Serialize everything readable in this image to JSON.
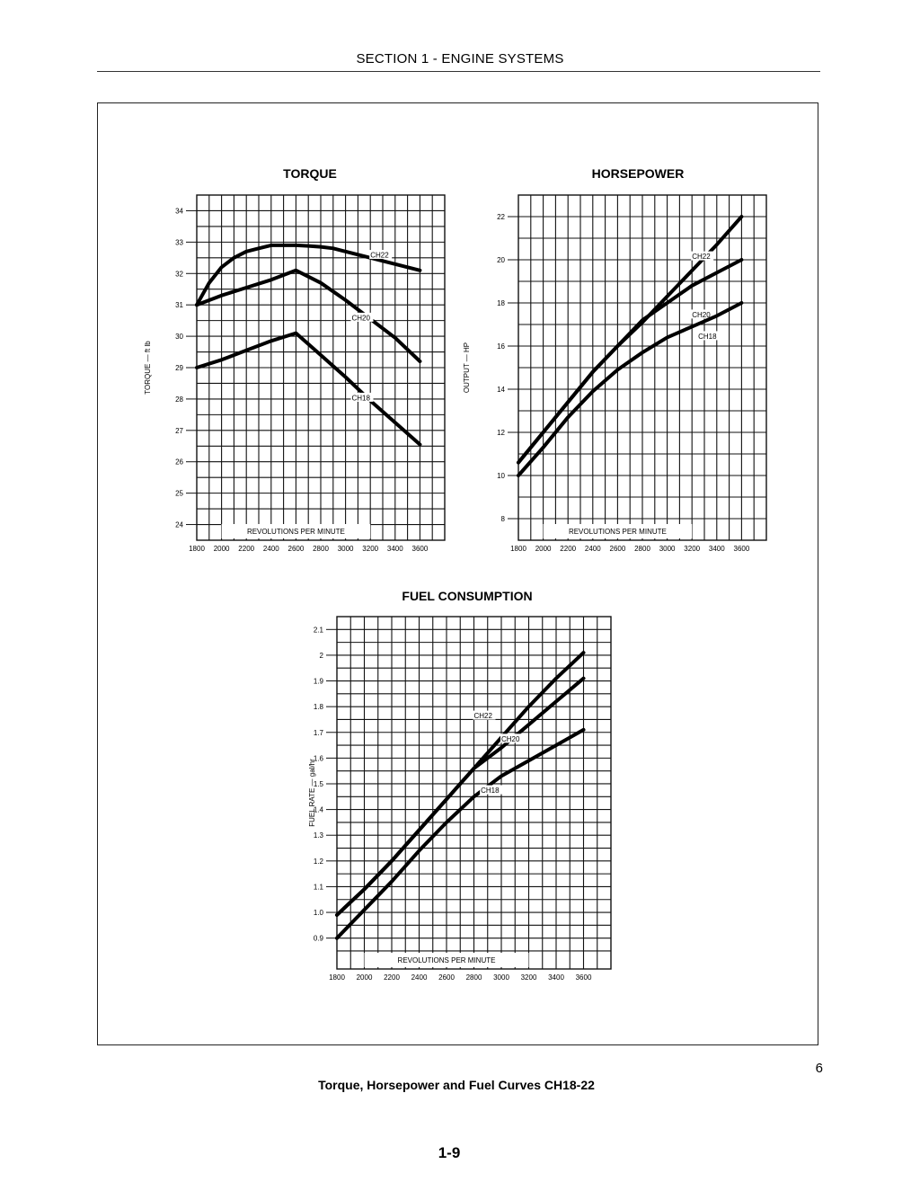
{
  "header": {
    "title": "SECTION 1 - ENGINE SYSTEMS"
  },
  "figure": {
    "number": "6",
    "caption": "Torque, Horsepower and Fuel Curves CH18-22"
  },
  "page": {
    "number": "1-9"
  },
  "chart_data": [
    {
      "id": "torque",
      "type": "line",
      "title": "TORQUE",
      "xlabel": "REVOLUTIONS PER MINUTE",
      "ylabel": "TORQUE — ft lb",
      "xlim": [
        1800,
        3800
      ],
      "ylim": [
        23.5,
        34.5
      ],
      "x_ticks": [
        "1800",
        "2000",
        "2200",
        "2400",
        "2600",
        "2800",
        "3000",
        "3200",
        "3400",
        "3600"
      ],
      "y_ticks": [
        "24",
        "25",
        "26",
        "27",
        "28",
        "29",
        "30",
        "31",
        "32",
        "33",
        "34"
      ],
      "grid": true,
      "series": [
        {
          "name": "CH22",
          "x": [
            1800,
            1900,
            2000,
            2100,
            2200,
            2300,
            2400,
            2500,
            2600,
            2700,
            2800,
            2900,
            3000,
            3100,
            3200,
            3300,
            3400,
            3500,
            3600
          ],
          "y": [
            31.0,
            31.7,
            32.2,
            32.5,
            32.7,
            32.8,
            32.9,
            32.9,
            32.9,
            32.88,
            32.85,
            32.8,
            32.7,
            32.6,
            32.5,
            32.4,
            32.3,
            32.2,
            32.1
          ]
        },
        {
          "name": "CH20",
          "x": [
            1800,
            2000,
            2200,
            2400,
            2600,
            2800,
            3000,
            3200,
            3400,
            3600
          ],
          "y": [
            31.0,
            31.3,
            31.55,
            31.8,
            32.1,
            31.7,
            31.15,
            30.55,
            29.95,
            29.2
          ]
        },
        {
          "name": "CH18",
          "x": [
            1800,
            2000,
            2200,
            2400,
            2600,
            2800,
            3000,
            3200,
            3400,
            3600
          ],
          "y": [
            29.0,
            29.25,
            29.55,
            29.85,
            30.1,
            29.4,
            28.7,
            27.95,
            27.25,
            26.55
          ]
        }
      ]
    },
    {
      "id": "horsepower",
      "type": "line",
      "title": "HORSEPOWER",
      "xlabel": "REVOLUTIONS PER MINUTE",
      "ylabel": "OUTPUT — HP",
      "xlim": [
        1800,
        3800
      ],
      "ylim": [
        7,
        23
      ],
      "x_ticks": [
        "1800",
        "2000",
        "2200",
        "2400",
        "2600",
        "2800",
        "3000",
        "3200",
        "3400",
        "3600"
      ],
      "y_ticks": [
        "8",
        "10",
        "12",
        "14",
        "16",
        "18",
        "20",
        "22"
      ],
      "grid": true,
      "series": [
        {
          "name": "CH22",
          "x": [
            1800,
            2000,
            2200,
            2400,
            2600,
            2800,
            3000,
            3200,
            3400,
            3600
          ],
          "y": [
            10.6,
            12.0,
            13.4,
            14.8,
            16.0,
            17.1,
            18.3,
            19.5,
            20.7,
            22.0
          ]
        },
        {
          "name": "CH20",
          "x": [
            1800,
            2000,
            2200,
            2400,
            2600,
            2800,
            3000,
            3200,
            3400,
            3600
          ],
          "y": [
            10.6,
            12.0,
            13.4,
            14.8,
            16.0,
            17.2,
            18.0,
            18.8,
            19.4,
            20.0
          ]
        },
        {
          "name": "CH18",
          "x": [
            1800,
            2000,
            2200,
            2400,
            2600,
            2800,
            3000,
            3200,
            3400,
            3600
          ],
          "y": [
            10.0,
            11.3,
            12.7,
            13.9,
            14.9,
            15.7,
            16.4,
            16.9,
            17.4,
            18.0
          ]
        }
      ]
    },
    {
      "id": "fuel",
      "type": "line",
      "title": "FUEL CONSUMPTION",
      "xlabel": "REVOLUTIONS PER MINUTE",
      "ylabel": "FUEL RATE — gal/hr",
      "xlim": [
        1800,
        3800
      ],
      "ylim": [
        0.78,
        2.15
      ],
      "x_ticks": [
        "1800",
        "2000",
        "2200",
        "2400",
        "2600",
        "2800",
        "3000",
        "3200",
        "3400",
        "3600"
      ],
      "y_ticks": [
        "0.9",
        "1.0",
        "1.1",
        "1.2",
        "1.3",
        "1.4",
        "1.5",
        "1.6",
        "1.7",
        "1.8",
        "1.9",
        "2",
        "2.1"
      ],
      "grid": true,
      "series": [
        {
          "name": "CH22",
          "x": [
            1800,
            2000,
            2200,
            2400,
            2600,
            2800,
            3000,
            3200,
            3400,
            3600
          ],
          "y": [
            0.99,
            1.09,
            1.2,
            1.32,
            1.44,
            1.56,
            1.68,
            1.8,
            1.91,
            2.01
          ]
        },
        {
          "name": "CH20",
          "x": [
            1800,
            2000,
            2200,
            2400,
            2600,
            2800,
            3000,
            3200,
            3400,
            3600
          ],
          "y": [
            0.99,
            1.09,
            1.2,
            1.32,
            1.44,
            1.56,
            1.64,
            1.73,
            1.82,
            1.91
          ]
        },
        {
          "name": "CH18",
          "x": [
            1800,
            2000,
            2200,
            2400,
            2600,
            2800,
            3000,
            3200,
            3400,
            3600
          ],
          "y": [
            0.9,
            1.01,
            1.12,
            1.24,
            1.35,
            1.45,
            1.53,
            1.59,
            1.65,
            1.71
          ]
        }
      ]
    }
  ]
}
